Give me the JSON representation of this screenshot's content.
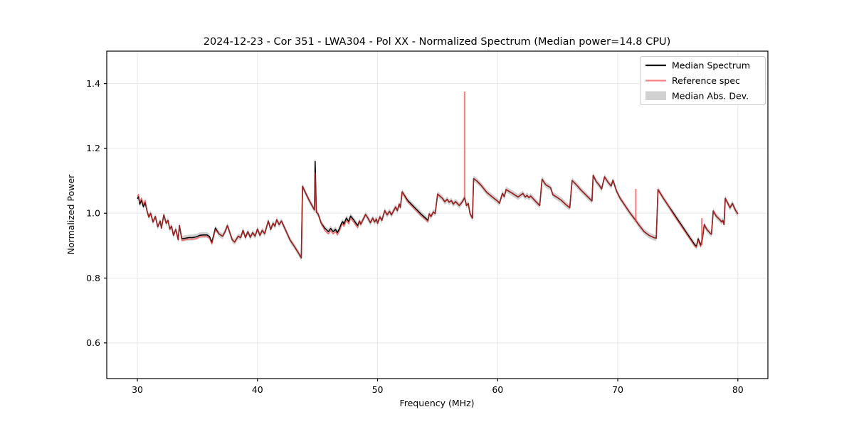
{
  "chart_data": {
    "type": "line",
    "title": "2024-12-23 - Cor 351 - LWA304 - Pol XX - Normalized Spectrum (Median power=14.8 CPU)",
    "xlabel": "Frequency (MHz)",
    "ylabel": "Normalized Power",
    "xlim": [
      27.45,
      82.5
    ],
    "ylim": [
      0.49,
      1.5
    ],
    "xticks": [
      30,
      40,
      50,
      60,
      70,
      80
    ],
    "xtick_labels": [
      "30",
      "40",
      "50",
      "60",
      "70",
      "80"
    ],
    "yticks": [
      0.6,
      0.8,
      1.0,
      1.2,
      1.4
    ],
    "ytick_labels": [
      "0.6",
      "0.8",
      "1.0",
      "1.2",
      "1.4"
    ],
    "grid": true,
    "legend": {
      "position": "upper right",
      "items": [
        {
          "label": "Median Spectrum",
          "swatch": "line",
          "color": "#000000"
        },
        {
          "label": "Reference spec",
          "swatch": "line",
          "color": "#f06e6e"
        },
        {
          "label": "Median Abs. Dev.",
          "swatch": "patch",
          "color": "#c7c7c7"
        }
      ]
    },
    "series": [
      {
        "name": "Median Spectrum",
        "color": "#000000",
        "points": [
          [
            30.0,
            1.045
          ],
          [
            30.1,
            1.051
          ],
          [
            30.2,
            1.028
          ],
          [
            30.35,
            1.04
          ],
          [
            30.5,
            1.02
          ],
          [
            30.65,
            1.033
          ],
          [
            30.8,
            1.008
          ],
          [
            30.95,
            0.988
          ],
          [
            31.1,
            1.0
          ],
          [
            31.3,
            0.973
          ],
          [
            31.5,
            0.99
          ],
          [
            31.7,
            0.958
          ],
          [
            31.9,
            0.976
          ],
          [
            32.0,
            0.954
          ],
          [
            32.2,
            0.995
          ],
          [
            32.4,
            0.969
          ],
          [
            32.55,
            0.978
          ],
          [
            32.7,
            0.951
          ],
          [
            32.85,
            0.96
          ],
          [
            33.0,
            0.932
          ],
          [
            33.2,
            0.95
          ],
          [
            33.4,
            0.918
          ],
          [
            33.5,
            0.962
          ],
          [
            33.7,
            0.921
          ],
          [
            34.0,
            0.923
          ],
          [
            34.3,
            0.925
          ],
          [
            34.6,
            0.925
          ],
          [
            34.9,
            0.927
          ],
          [
            35.2,
            0.932
          ],
          [
            35.5,
            0.933
          ],
          [
            35.8,
            0.933
          ],
          [
            36.0,
            0.928
          ],
          [
            36.2,
            0.91
          ],
          [
            36.5,
            0.954
          ],
          [
            36.8,
            0.936
          ],
          [
            37.1,
            0.929
          ],
          [
            37.3,
            0.943
          ],
          [
            37.5,
            0.962
          ],
          [
            37.9,
            0.918
          ],
          [
            38.1,
            0.911
          ],
          [
            38.4,
            0.929
          ],
          [
            38.6,
            0.925
          ],
          [
            38.8,
            0.947
          ],
          [
            39.0,
            0.925
          ],
          [
            39.2,
            0.943
          ],
          [
            39.4,
            0.926
          ],
          [
            39.6,
            0.94
          ],
          [
            39.8,
            0.929
          ],
          [
            40.0,
            0.951
          ],
          [
            40.2,
            0.932
          ],
          [
            40.4,
            0.947
          ],
          [
            40.6,
            0.937
          ],
          [
            40.9,
            0.976
          ],
          [
            41.1,
            0.95
          ],
          [
            41.3,
            0.969
          ],
          [
            41.45,
            0.96
          ],
          [
            41.6,
            0.98
          ],
          [
            41.8,
            0.965
          ],
          [
            42.0,
            0.976
          ],
          [
            42.4,
            0.943
          ],
          [
            42.7,
            0.918
          ],
          [
            43.1,
            0.896
          ],
          [
            43.4,
            0.878
          ],
          [
            43.65,
            0.862
          ],
          [
            43.75,
            1.083
          ],
          [
            44.0,
            1.063
          ],
          [
            44.3,
            1.04
          ],
          [
            44.6,
            1.02
          ],
          [
            44.75,
            1.01
          ],
          [
            44.8,
            1.16
          ],
          [
            44.9,
            1.003
          ],
          [
            45.05,
            0.998
          ],
          [
            45.3,
            0.97
          ],
          [
            45.6,
            0.954
          ],
          [
            45.9,
            0.943
          ],
          [
            46.1,
            0.953
          ],
          [
            46.3,
            0.943
          ],
          [
            46.5,
            0.95
          ],
          [
            46.65,
            0.94
          ],
          [
            46.85,
            0.954
          ],
          [
            47.0,
            0.969
          ],
          [
            47.1,
            0.974
          ],
          [
            47.2,
            0.966
          ],
          [
            47.4,
            0.985
          ],
          [
            47.6,
            0.974
          ],
          [
            47.75,
            0.991
          ],
          [
            48.0,
            0.98
          ],
          [
            48.2,
            0.969
          ],
          [
            48.35,
            0.962
          ],
          [
            48.5,
            0.976
          ],
          [
            48.6,
            0.966
          ],
          [
            49.0,
            0.996
          ],
          [
            49.2,
            0.985
          ],
          [
            49.4,
            0.971
          ],
          [
            49.6,
            0.985
          ],
          [
            49.75,
            0.973
          ],
          [
            49.9,
            0.982
          ],
          [
            50.0,
            0.969
          ],
          [
            50.2,
            0.989
          ],
          [
            50.35,
            0.978
          ],
          [
            50.6,
            1.008
          ],
          [
            50.8,
            0.995
          ],
          [
            51.0,
            1.006
          ],
          [
            51.15,
            0.995
          ],
          [
            51.5,
            1.019
          ],
          [
            51.65,
            1.008
          ],
          [
            51.8,
            1.028
          ],
          [
            51.9,
            1.018
          ],
          [
            52.05,
            1.066
          ],
          [
            52.5,
            1.04
          ],
          [
            53.1,
            1.017
          ],
          [
            53.6,
            0.998
          ],
          [
            54.0,
            0.985
          ],
          [
            54.2,
            0.978
          ],
          [
            54.3,
            0.998
          ],
          [
            54.45,
            0.99
          ],
          [
            54.65,
            1.004
          ],
          [
            54.8,
            0.999
          ],
          [
            55.0,
            1.059
          ],
          [
            55.4,
            1.046
          ],
          [
            55.6,
            1.035
          ],
          [
            55.8,
            1.043
          ],
          [
            55.95,
            1.034
          ],
          [
            56.15,
            1.039
          ],
          [
            56.3,
            1.028
          ],
          [
            56.5,
            1.036
          ],
          [
            56.8,
            1.024
          ],
          [
            56.95,
            1.03
          ],
          [
            57.05,
            1.035
          ],
          [
            57.25,
            1.048
          ],
          [
            57.4,
            1.024
          ],
          [
            57.55,
            1.03
          ],
          [
            57.7,
            0.998
          ],
          [
            57.9,
            0.985
          ],
          [
            58.0,
            1.107
          ],
          [
            58.25,
            1.1
          ],
          [
            58.6,
            1.087
          ],
          [
            59.1,
            1.064
          ],
          [
            59.7,
            1.046
          ],
          [
            60.0,
            1.037
          ],
          [
            60.15,
            1.031
          ],
          [
            60.4,
            1.061
          ],
          [
            60.55,
            1.051
          ],
          [
            60.7,
            1.073
          ],
          [
            61.2,
            1.062
          ],
          [
            61.7,
            1.05
          ],
          [
            62.1,
            1.061
          ],
          [
            62.3,
            1.05
          ],
          [
            62.45,
            1.055
          ],
          [
            62.6,
            1.048
          ],
          [
            62.75,
            1.053
          ],
          [
            63.2,
            1.035
          ],
          [
            63.5,
            1.024
          ],
          [
            63.7,
            1.105
          ],
          [
            64.0,
            1.088
          ],
          [
            64.4,
            1.079
          ],
          [
            64.6,
            1.057
          ],
          [
            64.9,
            1.05
          ],
          [
            65.3,
            1.04
          ],
          [
            65.7,
            1.026
          ],
          [
            66.0,
            1.017
          ],
          [
            66.2,
            1.101
          ],
          [
            66.6,
            1.086
          ],
          [
            66.9,
            1.073
          ],
          [
            67.3,
            1.058
          ],
          [
            67.6,
            1.047
          ],
          [
            67.85,
            1.038
          ],
          [
            67.95,
            1.117
          ],
          [
            68.2,
            1.098
          ],
          [
            68.45,
            1.087
          ],
          [
            68.65,
            1.075
          ],
          [
            68.9,
            1.112
          ],
          [
            69.2,
            1.095
          ],
          [
            69.45,
            1.084
          ],
          [
            69.6,
            1.102
          ],
          [
            69.9,
            1.068
          ],
          [
            70.2,
            1.046
          ],
          [
            70.6,
            1.024
          ],
          [
            71.0,
            1.002
          ],
          [
            71.45,
            0.98
          ],
          [
            71.8,
            0.962
          ],
          [
            72.2,
            0.943
          ],
          [
            72.6,
            0.932
          ],
          [
            73.0,
            0.925
          ],
          [
            73.2,
            0.923
          ],
          [
            73.35,
            1.073
          ],
          [
            73.8,
            1.046
          ],
          [
            74.2,
            1.024
          ],
          [
            74.6,
            1.002
          ],
          [
            75.0,
            0.98
          ],
          [
            75.4,
            0.958
          ],
          [
            75.8,
            0.936
          ],
          [
            76.2,
            0.914
          ],
          [
            76.4,
            0.903
          ],
          [
            76.55,
            0.898
          ],
          [
            76.7,
            0.921
          ],
          [
            76.9,
            0.901
          ],
          [
            77.05,
            0.92
          ],
          [
            77.2,
            0.965
          ],
          [
            77.4,
            0.951
          ],
          [
            77.7,
            0.938
          ],
          [
            77.8,
            0.935
          ],
          [
            77.95,
            1.007
          ],
          [
            78.2,
            0.991
          ],
          [
            78.5,
            0.98
          ],
          [
            78.65,
            0.973
          ],
          [
            78.75,
            0.978
          ],
          [
            78.85,
            0.965
          ],
          [
            78.95,
            1.046
          ],
          [
            79.2,
            1.028
          ],
          [
            79.35,
            1.017
          ],
          [
            79.55,
            1.03
          ],
          [
            79.8,
            1.009
          ],
          [
            80.0,
            0.998
          ]
        ]
      }
    ],
    "reference_spec": {
      "name": "Reference spec",
      "derived_from": "median",
      "offsets": [
        [
          29.95,
          30.75,
          0.007
        ],
        [
          33.7,
          36.6,
          -0.005
        ],
        [
          45.6,
          48.4,
          -0.007
        ],
        [
          52.3,
          54.2,
          -0.005
        ],
        [
          74.6,
          76.95,
          -0.004
        ]
      ],
      "peak_overrides": [
        [
          44.8,
          1.125
        ]
      ],
      "spikes": [
        {
          "freq": 57.25,
          "from": 1.048,
          "to": 1.375
        },
        {
          "freq": 71.5,
          "from": 0.975,
          "to": 1.075
        },
        {
          "freq": 77.0,
          "from": 0.902,
          "to": 0.985
        }
      ]
    },
    "mad_band": {
      "name": "Median Abs. Dev.",
      "halfwidth": 0.009
    },
    "colors": {
      "median": "#000000",
      "reference": "#ff3333",
      "reference_opacity": 0.62,
      "mad_band": "#999999",
      "mad_band_opacity": 0.45,
      "grid": "#e5e5e5",
      "spine": "#000000",
      "legend_frame": "#cccccc"
    }
  }
}
